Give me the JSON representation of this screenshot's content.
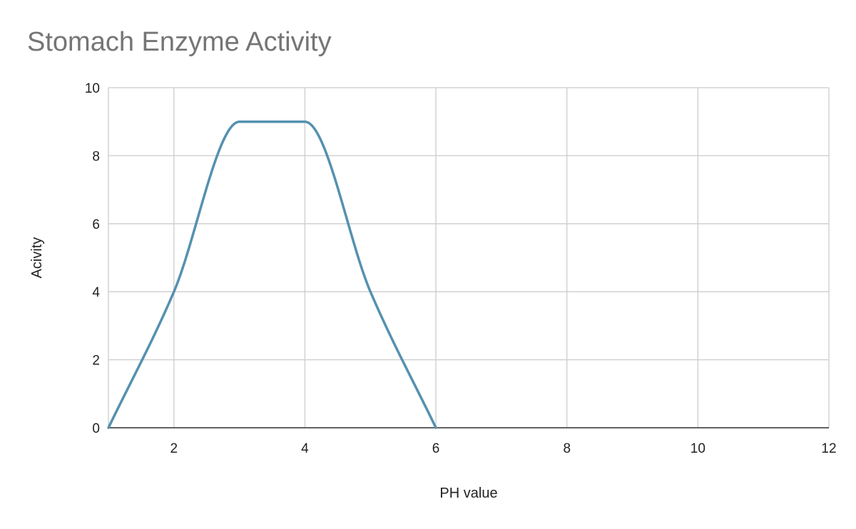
{
  "chart_data": {
    "type": "line",
    "title": "Stomach Enzyme Activity",
    "xlabel": "PH value",
    "ylabel": "Acivity",
    "xlim": [
      1,
      12
    ],
    "ylim": [
      0,
      10
    ],
    "x_ticks": [
      2,
      4,
      6,
      8,
      10,
      12
    ],
    "y_ticks": [
      0,
      2,
      4,
      6,
      8,
      10
    ],
    "grid": true,
    "legend": "none",
    "series": [
      {
        "color": "#5591b0",
        "x": [
          1,
          2,
          3,
          4,
          5,
          6
        ],
        "y": [
          0,
          4,
          9,
          9,
          4,
          0
        ]
      }
    ]
  }
}
